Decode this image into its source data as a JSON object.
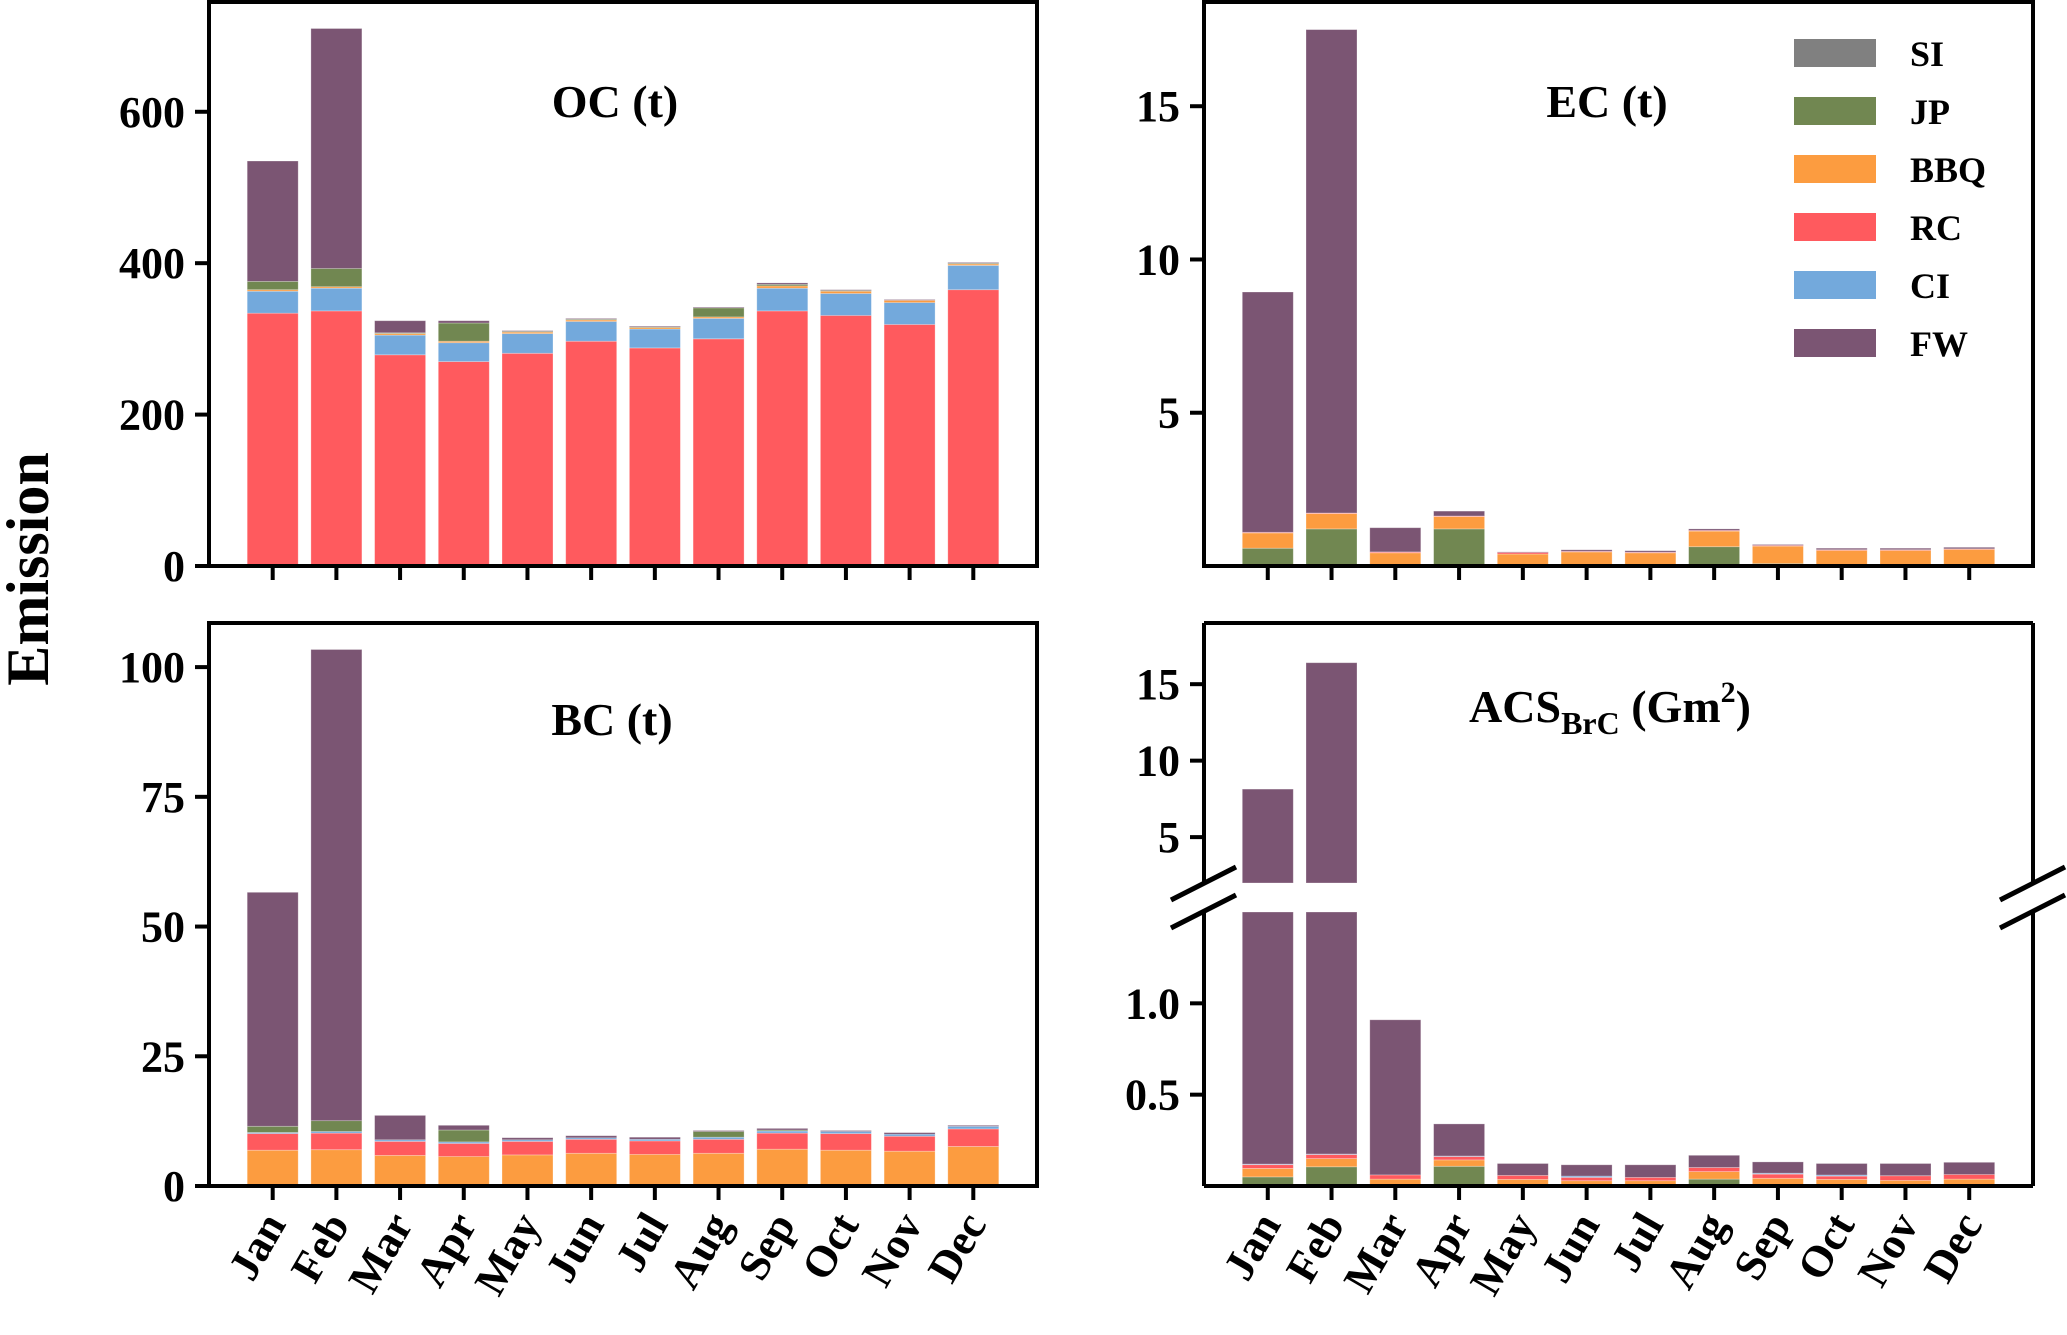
{
  "chart_data": {
    "type": "bar",
    "stacked": true,
    "ylabel": "Emission",
    "categories": [
      "Jan",
      "Feb",
      "Mar",
      "Apr",
      "May",
      "Jun",
      "Jul",
      "Aug",
      "Sep",
      "Oct",
      "Nov",
      "Dec"
    ],
    "legend": {
      "placement": "top-right (inside EC panel)",
      "entries": [
        {
          "key": "SI",
          "label": "SI",
          "color": "#808080"
        },
        {
          "key": "JP",
          "label": "JP",
          "color": "#718751"
        },
        {
          "key": "BBQ",
          "label": "BBQ",
          "color": "#FC9C40"
        },
        {
          "key": "RC",
          "label": "RC",
          "color": "#FF5A5E"
        },
        {
          "key": "CI",
          "label": "CI",
          "color": "#73A9DC"
        },
        {
          "key": "FW",
          "label": "FW",
          "color": "#7B5573"
        }
      ]
    },
    "panels": [
      {
        "id": "oc",
        "title": "OC (t)",
        "position": "top-left",
        "ylim": [
          0,
          745
        ],
        "yticks": [
          0,
          200,
          400,
          600
        ],
        "stack_order": [
          "RC",
          "CI",
          "BBQ",
          "JP",
          "SI",
          "FW"
        ],
        "series": {
          "RC": [
            334,
            337,
            279,
            270,
            281,
            297,
            288,
            300,
            337,
            331,
            319,
            365
          ],
          "CI": [
            29,
            30,
            26,
            25,
            26,
            26,
            25,
            27,
            30,
            29,
            29,
            32
          ],
          "BBQ": [
            2,
            2,
            2,
            2,
            2,
            2,
            2,
            2,
            3,
            3,
            3,
            2
          ],
          "JP": [
            11,
            24,
            1,
            24,
            1,
            1,
            1,
            12,
            2,
            1,
            0,
            1
          ],
          "SI": [
            0,
            0,
            0,
            0,
            0,
            0,
            0,
            0,
            0,
            0,
            0,
            0
          ],
          "FW": [
            159,
            317,
            16,
            3,
            1,
            1,
            1,
            1,
            2,
            1,
            1,
            1
          ]
        }
      },
      {
        "id": "ec",
        "title": "EC (t)",
        "position": "top-right",
        "ylim": [
          0,
          18.4
        ],
        "yticks": [
          5,
          10,
          15
        ],
        "stack_order": [
          "JP",
          "BBQ",
          "RC",
          "CI",
          "SI",
          "FW"
        ],
        "series": {
          "JP": [
            0.58,
            1.21,
            0.0,
            1.21,
            0.0,
            0.0,
            0.0,
            0.63,
            0.08,
            0.0,
            0.0,
            0.0
          ],
          "BBQ": [
            0.5,
            0.5,
            0.43,
            0.4,
            0.39,
            0.46,
            0.43,
            0.51,
            0.57,
            0.51,
            0.51,
            0.54
          ],
          "RC": [
            0.02,
            0.02,
            0.03,
            0.02,
            0.05,
            0.02,
            0.02,
            0.02,
            0.02,
            0.02,
            0.02,
            0.02
          ],
          "CI": [
            0.0,
            0.0,
            0.0,
            0.0,
            0.0,
            0.0,
            0.0,
            0.0,
            0.0,
            0.0,
            0.0,
            0.0
          ],
          "SI": [
            0.0,
            0.0,
            0.0,
            0.0,
            0.0,
            0.0,
            0.0,
            0.0,
            0.0,
            0.0,
            0.0,
            0.0
          ],
          "FW": [
            7.84,
            15.77,
            0.79,
            0.16,
            0.02,
            0.05,
            0.05,
            0.05,
            0.03,
            0.05,
            0.05,
            0.05
          ]
        }
      },
      {
        "id": "bc",
        "title": "BC (t)",
        "position": "bottom-left",
        "ylim": [
          0,
          108.5
        ],
        "yticks": [
          0,
          25,
          50,
          75,
          100
        ],
        "stack_order": [
          "BBQ",
          "RC",
          "CI",
          "JP",
          "SI",
          "FW"
        ],
        "series": {
          "BBQ": [
            6.9,
            7.0,
            5.9,
            5.7,
            6.0,
            6.3,
            6.1,
            6.3,
            7.1,
            6.9,
            6.7,
            7.6
          ],
          "RC": [
            3.2,
            3.2,
            2.7,
            2.5,
            2.6,
            2.7,
            2.6,
            2.7,
            3.1,
            3.2,
            2.9,
            3.4
          ],
          "CI": [
            0.2,
            0.3,
            0.3,
            0.3,
            0.3,
            0.3,
            0.3,
            0.4,
            0.4,
            0.4,
            0.4,
            0.5
          ],
          "JP": [
            1.2,
            2.1,
            0.0,
            2.3,
            0.0,
            0.0,
            0.0,
            1.1,
            0.2,
            0.0,
            0.0,
            0.0
          ],
          "SI": [
            0.0,
            0.0,
            0.0,
            0.0,
            0.0,
            0.0,
            0.0,
            0.0,
            0.0,
            0.0,
            0.0,
            0.0
          ],
          "FW": [
            45.1,
            90.8,
            4.7,
            0.9,
            0.4,
            0.4,
            0.4,
            0.2,
            0.3,
            0.2,
            0.3,
            0.2
          ]
        }
      },
      {
        "id": "acs",
        "title": "ACS",
        "title_subscript": "BrC",
        "title_unit_prefix": " (Gm",
        "title_unit_superscript": "2",
        "title_unit_suffix": ")",
        "position": "bottom-right",
        "broken_axis": true,
        "ylim_lower": [
          0,
          1.5
        ],
        "ylim_upper": [
          2.0,
          19.0
        ],
        "yticks_lower": [
          0.5,
          1.0
        ],
        "yticks_upper": [
          5,
          10,
          15
        ],
        "stack_order": [
          "JP",
          "BBQ",
          "RC",
          "CI",
          "SI",
          "FW"
        ],
        "series": {
          "JP": [
            0.05,
            0.105,
            0.0,
            0.108,
            0.0,
            0.0,
            0.0,
            0.038,
            0.0,
            0.0,
            0.0,
            0.0
          ],
          "BBQ": [
            0.046,
            0.045,
            0.038,
            0.035,
            0.036,
            0.029,
            0.029,
            0.041,
            0.042,
            0.036,
            0.031,
            0.038
          ],
          "RC": [
            0.021,
            0.023,
            0.023,
            0.019,
            0.022,
            0.018,
            0.018,
            0.022,
            0.023,
            0.018,
            0.025,
            0.025
          ],
          "CI": [
            0.003,
            0.002,
            0.0,
            0.002,
            0.0,
            0.007,
            0.0,
            0.0,
            0.005,
            0.006,
            0.0,
            0.0
          ],
          "SI": [
            0.0,
            0.0,
            0.0,
            0.0,
            0.0,
            0.0,
            0.0,
            0.0,
            0.0,
            0.0,
            0.0,
            0.0
          ],
          "FW": [
            8.02,
            16.23,
            0.849,
            0.176,
            0.065,
            0.062,
            0.069,
            0.067,
            0.062,
            0.063,
            0.067,
            0.067
          ]
        }
      }
    ]
  }
}
